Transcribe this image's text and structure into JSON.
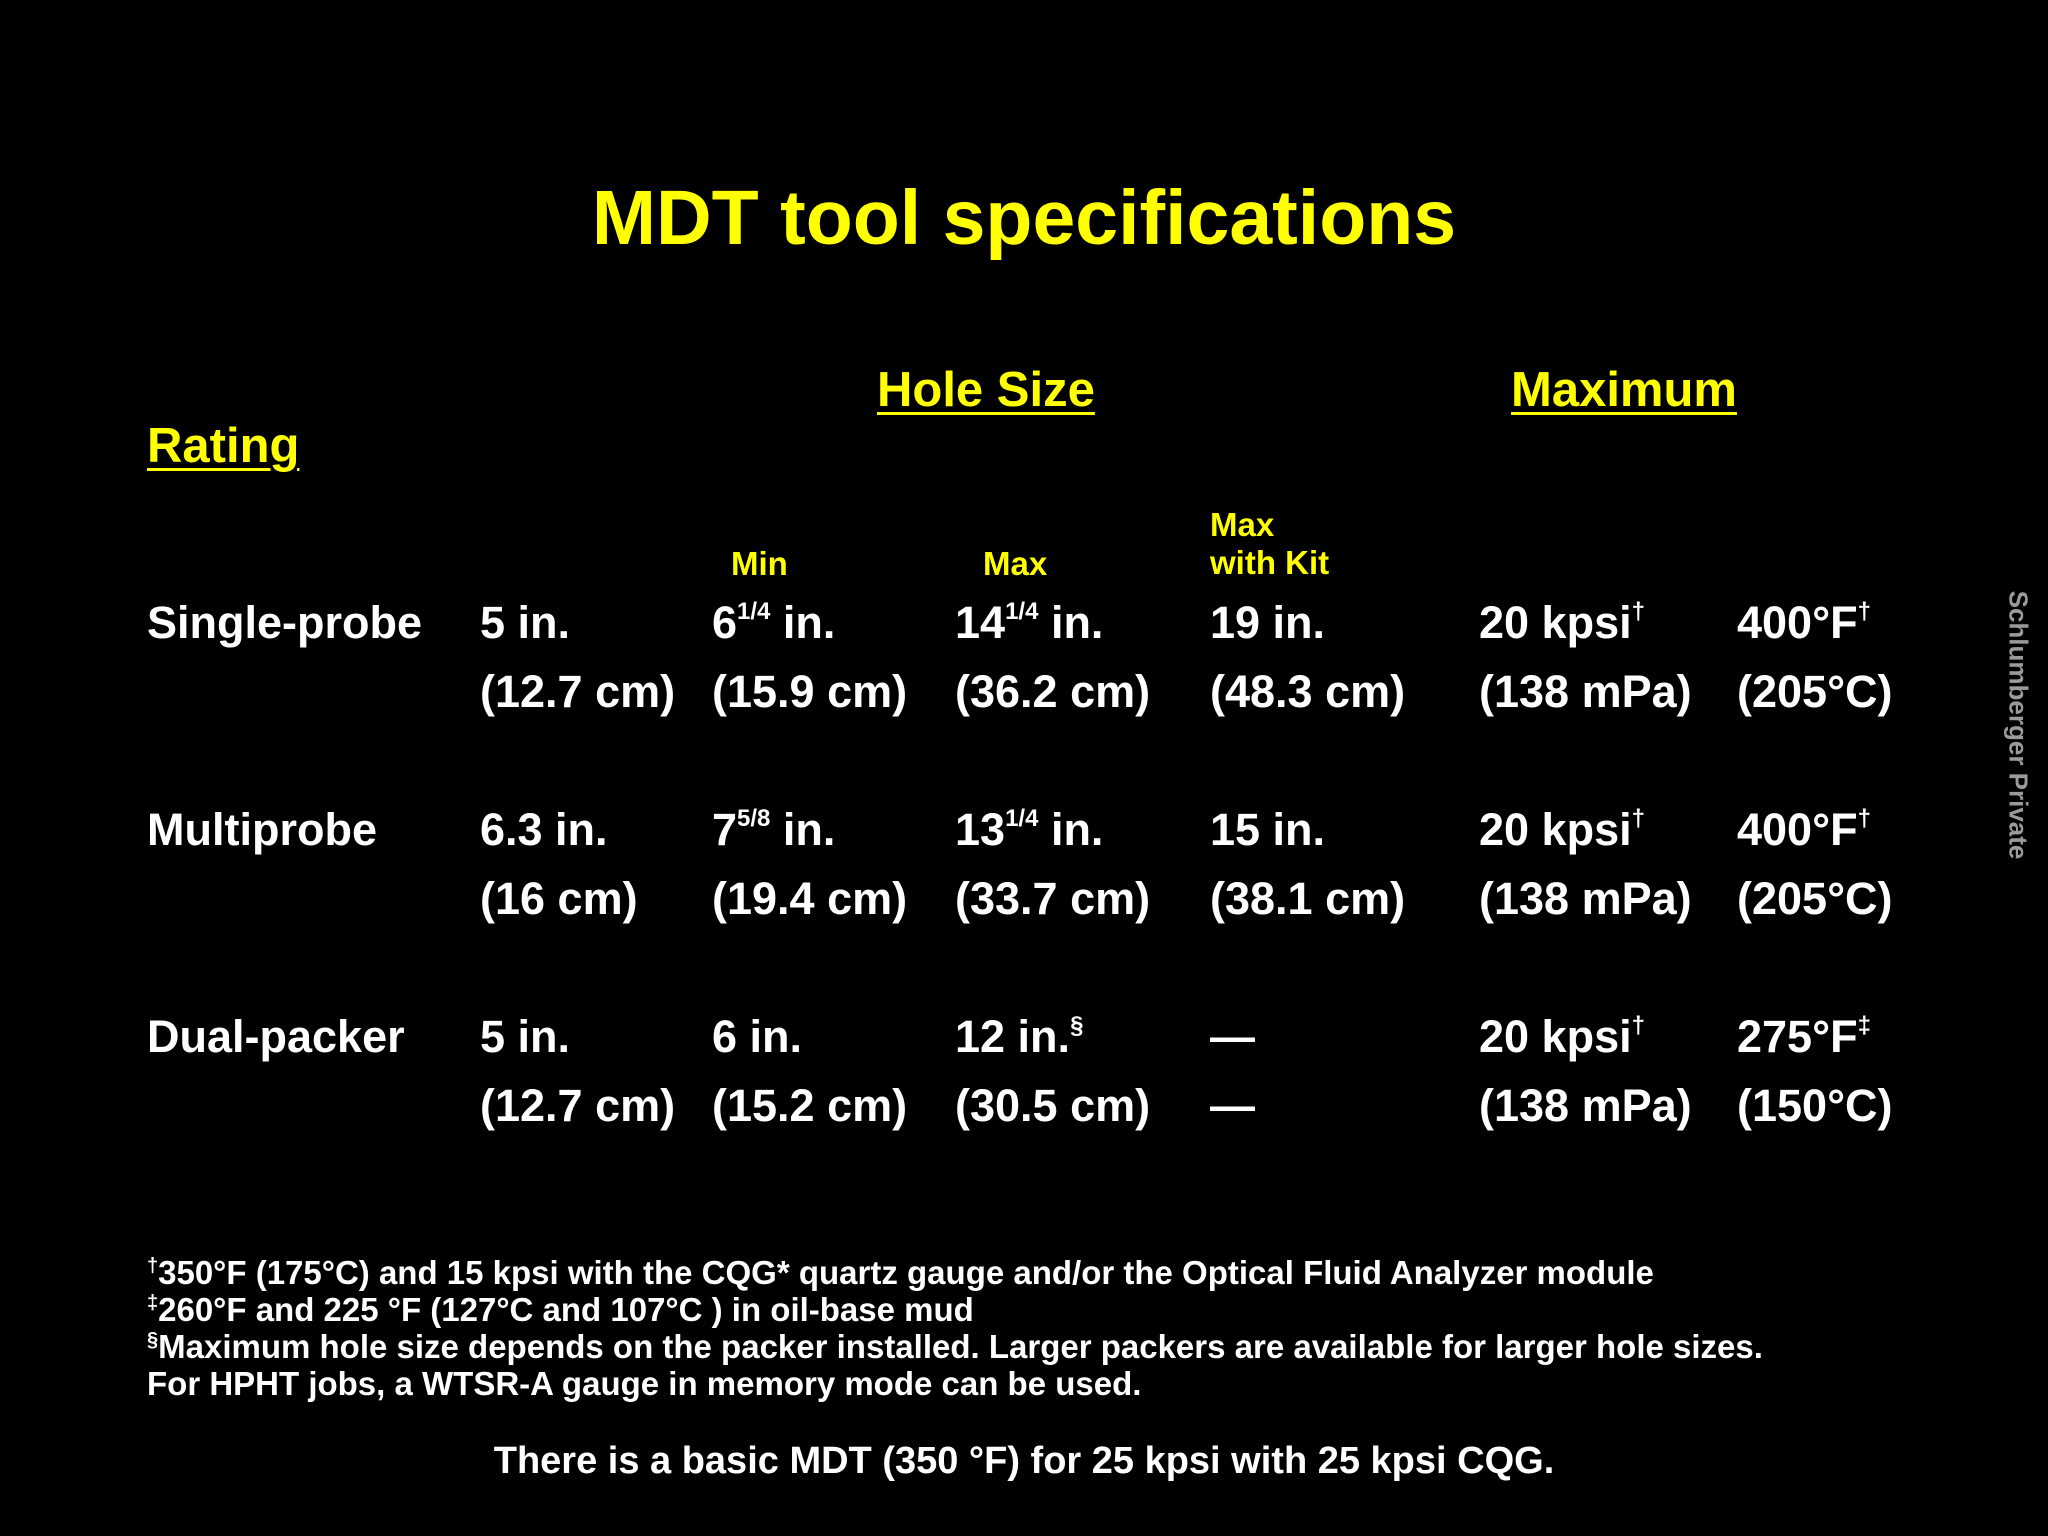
{
  "title": "MDT tool specifications",
  "headers": {
    "rating": "Rating",
    "hole_size": "Hole Size",
    "maximum": "Maximum",
    "min": "Min",
    "max": "Max",
    "max_with_kit": "Max\nwith Kit"
  },
  "rows": [
    {
      "name": "Single-probe",
      "c1": [
        "5 in.",
        "(12.7 cm)"
      ],
      "c2": [
        "6",
        "1/4",
        " in.",
        "(15.9 cm)"
      ],
      "c3": [
        "14",
        "1/4",
        " in.",
        "(36.2 cm)"
      ],
      "c4": [
        "19 in.",
        "(48.3 cm)"
      ],
      "c5": [
        "20 kpsi",
        "†",
        "(138 mPa)"
      ],
      "c6": [
        "400°F",
        "†",
        "(205°C)"
      ]
    },
    {
      "name": "Multiprobe",
      "c1": [
        "6.3 in.",
        "(16 cm)"
      ],
      "c2": [
        "7",
        "5/8",
        " in.",
        "(19.4 cm)"
      ],
      "c3": [
        "13",
        "1/4",
        " in.",
        "(33.7 cm)"
      ],
      "c4": [
        "15 in.",
        "(38.1 cm)"
      ],
      "c5": [
        "20 kpsi",
        "†",
        "(138 mPa)"
      ],
      "c6": [
        "400°F",
        "†",
        "(205°C)"
      ]
    },
    {
      "name": "Dual-packer",
      "c1": [
        "5 in.",
        "(12.7 cm)"
      ],
      "c2": [
        "6 in.",
        "",
        "",
        "(15.2 cm)"
      ],
      "c3": [
        "12 in.",
        "§",
        "",
        "(30.5 cm)"
      ],
      "c4": [
        "—",
        "—"
      ],
      "c5": [
        "20 kpsi",
        "†",
        "(138 mPa)"
      ],
      "c6": [
        "275°F",
        "‡",
        "(150°C)"
      ]
    }
  ],
  "footnotes": [
    {
      "mark": "†",
      "text": "350°F (175°C) and 15 kpsi with the CQG* quartz gauge and/or the Optical Fluid Analyzer module"
    },
    {
      "mark": "‡",
      "text": "260°F and 225 °F (127°C and 107°C ) in oil-base mud"
    },
    {
      "mark": "§",
      "text": "Maximum hole size depends on the packer installed. Larger packers are available for larger hole sizes."
    },
    {
      "mark": "",
      "text": "For HPHT jobs, a WTSR-A gauge in memory mode can be used."
    }
  ],
  "bottom_note": "There is a basic MDT (350 °F)  for 25 kpsi with 25 kpsi CQG.",
  "side_label": "Schlumberger Private",
  "colors": {
    "background": "#000000",
    "heading": "#ffff00",
    "text": "#ffffff",
    "side_label": "#9a9a9a"
  }
}
